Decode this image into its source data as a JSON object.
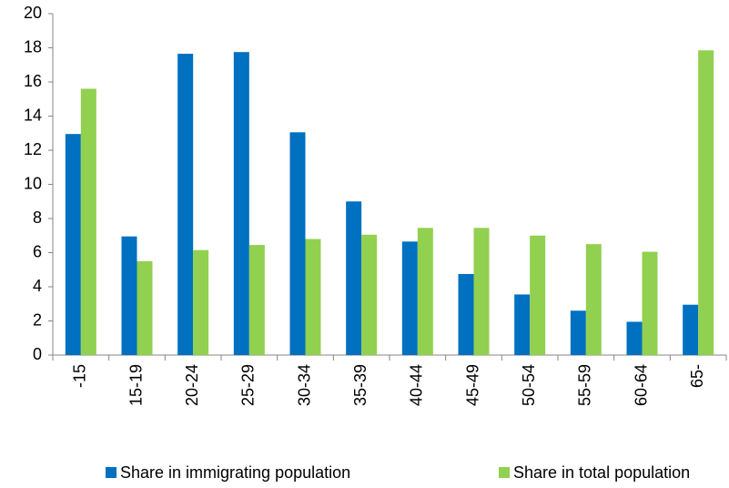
{
  "chart_data": {
    "type": "bar",
    "categories": [
      "-15",
      "15-19",
      "20-24",
      "25-29",
      "30-34",
      "35-39",
      "40-44",
      "45-49",
      "50-54",
      "55-59",
      "60-64",
      "65-"
    ],
    "series": [
      {
        "name": "Share in immigrating population",
        "color": "#0070c0",
        "values": [
          12.95,
          6.95,
          17.65,
          17.75,
          13.05,
          9.0,
          6.65,
          4.75,
          3.55,
          2.6,
          1.95,
          2.95
        ]
      },
      {
        "name": "Share in total population",
        "color": "#92d050",
        "values": [
          15.6,
          5.5,
          6.15,
          6.45,
          6.8,
          7.05,
          7.45,
          7.45,
          7.0,
          6.5,
          6.05,
          17.85
        ]
      }
    ],
    "ylim": [
      0,
      20
    ],
    "yticks": [
      0,
      2,
      4,
      6,
      8,
      10,
      12,
      14,
      16,
      18,
      20
    ],
    "grid": false,
    "legend": "bottom"
  }
}
